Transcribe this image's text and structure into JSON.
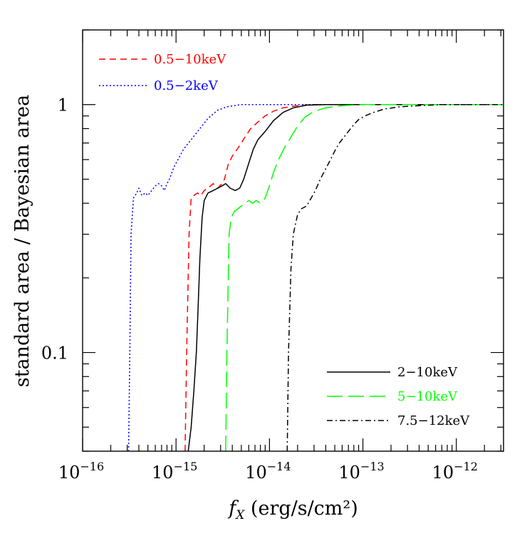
{
  "chart_data": {
    "type": "line",
    "xlabel_symbol": "f",
    "xlabel_subscript": "X",
    "xlabel_units": " (erg/s/cm²)",
    "ylabel": "standard area / Bayesian area",
    "xscale": "log",
    "yscale": "log",
    "xlim": [
      1e-16,
      3.2e-12
    ],
    "ylim": [
      0.04,
      2.0
    ],
    "x_tick_labels": [
      {
        "value": 1e-16,
        "base": "10",
        "exp": "−16"
      },
      {
        "value": 1e-15,
        "base": "10",
        "exp": "−15"
      },
      {
        "value": 1e-14,
        "base": "10",
        "exp": "−14"
      },
      {
        "value": 1e-13,
        "base": "10",
        "exp": "−13"
      },
      {
        "value": 1e-12,
        "base": "10",
        "exp": "−12"
      }
    ],
    "y_tick_labels": [
      {
        "value": 0.1,
        "label": "0.1"
      },
      {
        "value": 1,
        "label": "1"
      }
    ],
    "legend_placement": [
      "top-left",
      "bottom-right"
    ],
    "series": [
      {
        "name": "0.5−10keV",
        "color": "#ff0000",
        "dash": "9,6",
        "legend_group": "top-left",
        "x": [
          1.25e-15,
          1.3e-15,
          1.38e-15,
          1.45e-15,
          1.55e-15,
          1.7e-15,
          1.85e-15,
          2e-15,
          2.2e-15,
          2.5e-15,
          2.8e-15,
          3.1e-15,
          3.3e-15,
          3.6e-15,
          4e-15,
          4.5e-15,
          5e-15,
          5.6e-15,
          6.3e-15,
          7.5e-15,
          9e-15,
          1.1e-14,
          1.4e-14,
          2e-14,
          3e-14,
          3.2e-12
        ],
        "y": [
          0.04,
          0.1,
          0.3,
          0.42,
          0.43,
          0.44,
          0.43,
          0.45,
          0.46,
          0.48,
          0.46,
          0.48,
          0.5,
          0.57,
          0.62,
          0.66,
          0.7,
          0.75,
          0.8,
          0.85,
          0.9,
          0.94,
          0.97,
          0.99,
          1.0,
          1.0
        ]
      },
      {
        "name": "0.5−2keV",
        "color": "#0000ff",
        "dash": "2,3",
        "legend_group": "top-left",
        "x": [
          3.1e-16,
          3.2e-16,
          3.3e-16,
          3.5e-16,
          3.8e-16,
          4e-16,
          4.3e-16,
          4.7e-16,
          5e-16,
          5.5e-16,
          6e-16,
          6.5e-16,
          7e-16,
          7.5e-16,
          8e-16,
          8.5e-16,
          9e-16,
          9.5e-16,
          1.05e-15,
          1.2e-15,
          1.4e-15,
          1.8e-15,
          2.2e-15,
          2.8e-15,
          3.5e-15,
          5e-15,
          7e-15,
          3.2e-12
        ],
        "y": [
          0.04,
          0.1,
          0.3,
          0.42,
          0.44,
          0.46,
          0.43,
          0.44,
          0.43,
          0.45,
          0.47,
          0.48,
          0.47,
          0.45,
          0.48,
          0.5,
          0.53,
          0.56,
          0.6,
          0.66,
          0.71,
          0.8,
          0.88,
          0.95,
          0.98,
          1.0,
          1.0,
          1.0
        ]
      },
      {
        "name": "2−10keV",
        "color": "#000000",
        "dash": "",
        "legend_group": "bottom-right",
        "x": [
          1.35e-15,
          1.45e-15,
          1.55e-15,
          1.65e-15,
          1.72e-15,
          1.8e-15,
          1.9e-15,
          2e-15,
          2.2e-15,
          2.5e-15,
          2.8e-15,
          3.1e-15,
          3.4e-15,
          3.8e-15,
          4.3e-15,
          4.8e-15,
          5.3e-15,
          6e-15,
          6.7e-15,
          7.5e-15,
          9e-15,
          1.1e-14,
          1.4e-14,
          1.8e-14,
          2.5e-14,
          4e-14,
          3.2e-12
        ],
        "y": [
          0.04,
          0.05,
          0.07,
          0.1,
          0.15,
          0.24,
          0.35,
          0.41,
          0.44,
          0.45,
          0.46,
          0.47,
          0.48,
          0.46,
          0.45,
          0.46,
          0.5,
          0.58,
          0.66,
          0.72,
          0.78,
          0.86,
          0.93,
          0.97,
          0.995,
          1.0,
          1.0
        ]
      },
      {
        "name": "5−10keV",
        "color": "#00ff00",
        "dash": "22,8",
        "legend_group": "bottom-right",
        "x": [
          3.4e-15,
          3.5e-15,
          3.7e-15,
          3.9e-15,
          4.2e-15,
          4.6e-15,
          5e-15,
          5.5e-15,
          6e-15,
          6.6e-15,
          7.2e-15,
          8e-15,
          9e-15,
          1e-14,
          1.1e-14,
          1.25e-14,
          1.45e-14,
          1.7e-14,
          2e-14,
          2.4e-14,
          3e-14,
          4e-14,
          6e-14,
          1e-13,
          3.2e-12
        ],
        "y": [
          0.04,
          0.1,
          0.3,
          0.35,
          0.37,
          0.38,
          0.39,
          0.4,
          0.41,
          0.4,
          0.41,
          0.4,
          0.42,
          0.47,
          0.53,
          0.6,
          0.67,
          0.74,
          0.82,
          0.89,
          0.94,
          0.97,
          0.99,
          1.0,
          1.0
        ]
      },
      {
        "name": "7.5−12keV",
        "color": "#000000",
        "dash": "8,4,2,4",
        "legend_group": "bottom-right",
        "x": [
          1.55e-14,
          1.6e-14,
          1.7e-14,
          1.8e-14,
          1.9e-14,
          2e-14,
          2.2e-14,
          2.5e-14,
          2.8e-14,
          3.1e-14,
          3.5e-14,
          4e-14,
          4.5e-14,
          5e-14,
          5.6e-14,
          6.3e-14,
          7e-14,
          8e-14,
          9e-14,
          1.05e-13,
          1.3e-13,
          1.7e-13,
          2.5e-13,
          4e-13,
          7e-13,
          3.2e-12
        ],
        "y": [
          0.04,
          0.1,
          0.22,
          0.3,
          0.33,
          0.36,
          0.38,
          0.39,
          0.42,
          0.45,
          0.5,
          0.55,
          0.6,
          0.65,
          0.7,
          0.74,
          0.78,
          0.83,
          0.87,
          0.9,
          0.93,
          0.96,
          0.98,
          0.99,
          1.0,
          1.0
        ]
      }
    ]
  }
}
